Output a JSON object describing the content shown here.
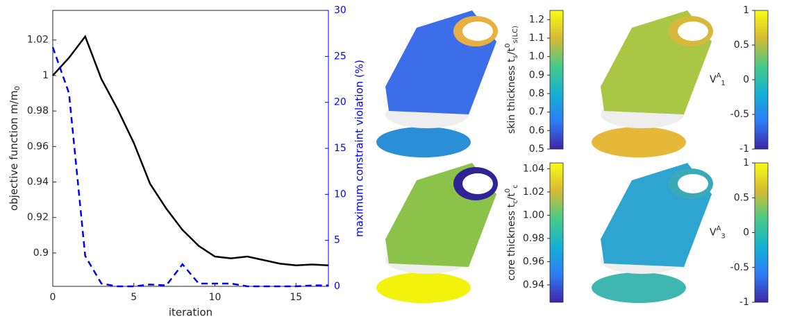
{
  "chart_data": [
    {
      "type": "line",
      "xlabel": "iteration",
      "ylabel": "objective function m/m_{0}",
      "y2label": "maximum constraint violation (%)",
      "x": [
        0,
        1,
        2,
        3,
        4,
        5,
        6,
        7,
        8,
        9,
        10,
        11,
        12,
        13,
        14,
        15,
        16,
        17
      ],
      "xlim": [
        0,
        17
      ],
      "xticks": [
        0,
        5,
        10,
        15
      ],
      "ylim": [
        0.8812,
        1.0367
      ],
      "yticks": [
        {
          "value": 0.9,
          "label": "0.9"
        },
        0.92,
        0.94,
        0.96,
        0.98,
        1,
        1.02
      ],
      "y2lim": [
        0,
        30
      ],
      "y2ticks": [
        0,
        5,
        10,
        15,
        20,
        25,
        30
      ],
      "series": [
        {
          "color": "#000000",
          "values": [
            1.0,
            1.01,
            1.022,
            0.998,
            0.981,
            0.962,
            0.939,
            0.925,
            0.913,
            0.904,
            0.898,
            0.897,
            0.898,
            0.896,
            0.894,
            0.893,
            0.8935,
            0.893
          ]
        },
        {
          "color": "#0000ff",
          "axis": "y2",
          "dashed": true,
          "values": [
            26,
            21,
            3.3,
            0.3,
            0,
            0,
            0.2,
            0.1,
            2.4,
            0.3,
            0.3,
            0.3,
            0,
            0,
            0,
            0,
            0.1,
            0.1
          ]
        }
      ]
    },
    {
      "type": "colorbar",
      "label": "skin thickness t_{s}/t^{0}_{s(LC)}",
      "ylim": [
        0.5,
        1.25
      ],
      "yticks": [
        0.5,
        0.6,
        0.7,
        0.8,
        0.9,
        {
          "value": 1.0,
          "label": "1.0"
        },
        1.1,
        1.2
      ]
    },
    {
      "type": "colorbar",
      "label": "V^{A}_{1}",
      "ylim": [
        -1,
        1
      ],
      "yticks": [
        -1,
        -0.5,
        0,
        0.5,
        1
      ]
    },
    {
      "type": "colorbar",
      "label": "core thickness t_{c}/t^{0}_{c}",
      "ylim": [
        0.925,
        1.045
      ],
      "yticks": [
        0.94,
        0.96,
        0.98,
        {
          "value": 1.0,
          "label": "1.00"
        },
        1.02,
        1.04
      ]
    },
    {
      "type": "colorbar",
      "label": "V^{A}_{3}",
      "ylim": [
        -1,
        1
      ],
      "yticks": [
        -1,
        -0.5,
        0,
        0.5,
        1
      ]
    }
  ]
}
